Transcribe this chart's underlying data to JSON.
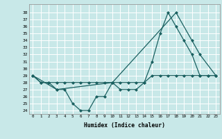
{
  "xlabel": "Humidex (Indice chaleur)",
  "background_color": "#c8e8e8",
  "grid_color": "#ffffff",
  "line_color": "#1a6060",
  "x_ticks": [
    0,
    1,
    2,
    3,
    4,
    5,
    6,
    7,
    8,
    9,
    10,
    11,
    12,
    13,
    14,
    15,
    16,
    17,
    18,
    19,
    20,
    21,
    22,
    23
  ],
  "x_tick_labels": [
    "0",
    "1",
    "2",
    "3",
    "4",
    "5",
    "6",
    "7",
    "8",
    "9",
    "10",
    "11",
    "12",
    "13",
    "14",
    "15",
    "16",
    "17",
    "18",
    "19",
    "20",
    "21",
    "22",
    "23"
  ],
  "y_ticks": [
    24,
    25,
    26,
    27,
    28,
    29,
    30,
    31,
    32,
    33,
    34,
    35,
    36,
    37,
    38
  ],
  "ylim": [
    23.5,
    39.2
  ],
  "xlim": [
    -0.5,
    23.5
  ],
  "series1_x": [
    0,
    1,
    2,
    3,
    4,
    5,
    6,
    7,
    8,
    9,
    10,
    11,
    12,
    13,
    14,
    15,
    16,
    17,
    18,
    19,
    20,
    21,
    22,
    23
  ],
  "series1_y": [
    29,
    28,
    28,
    27,
    27,
    25,
    24,
    24,
    26,
    26,
    28,
    27,
    27,
    27,
    28,
    31,
    35,
    38,
    36,
    34,
    32,
    29,
    29,
    29
  ],
  "series2_x": [
    0,
    1,
    2,
    3,
    4,
    5,
    6,
    7,
    8,
    9,
    10,
    11,
    12,
    13,
    14,
    15,
    16,
    17,
    18,
    19,
    20,
    21,
    22,
    23
  ],
  "series2_y": [
    29,
    28,
    28,
    28,
    28,
    28,
    28,
    28,
    28,
    28,
    28,
    28,
    28,
    28,
    28,
    29,
    29,
    29,
    29,
    29,
    29,
    29,
    29,
    29
  ],
  "series3_x": [
    0,
    3,
    10,
    18,
    20,
    21,
    23
  ],
  "series3_y": [
    29,
    27,
    28,
    38,
    34,
    32,
    29
  ]
}
